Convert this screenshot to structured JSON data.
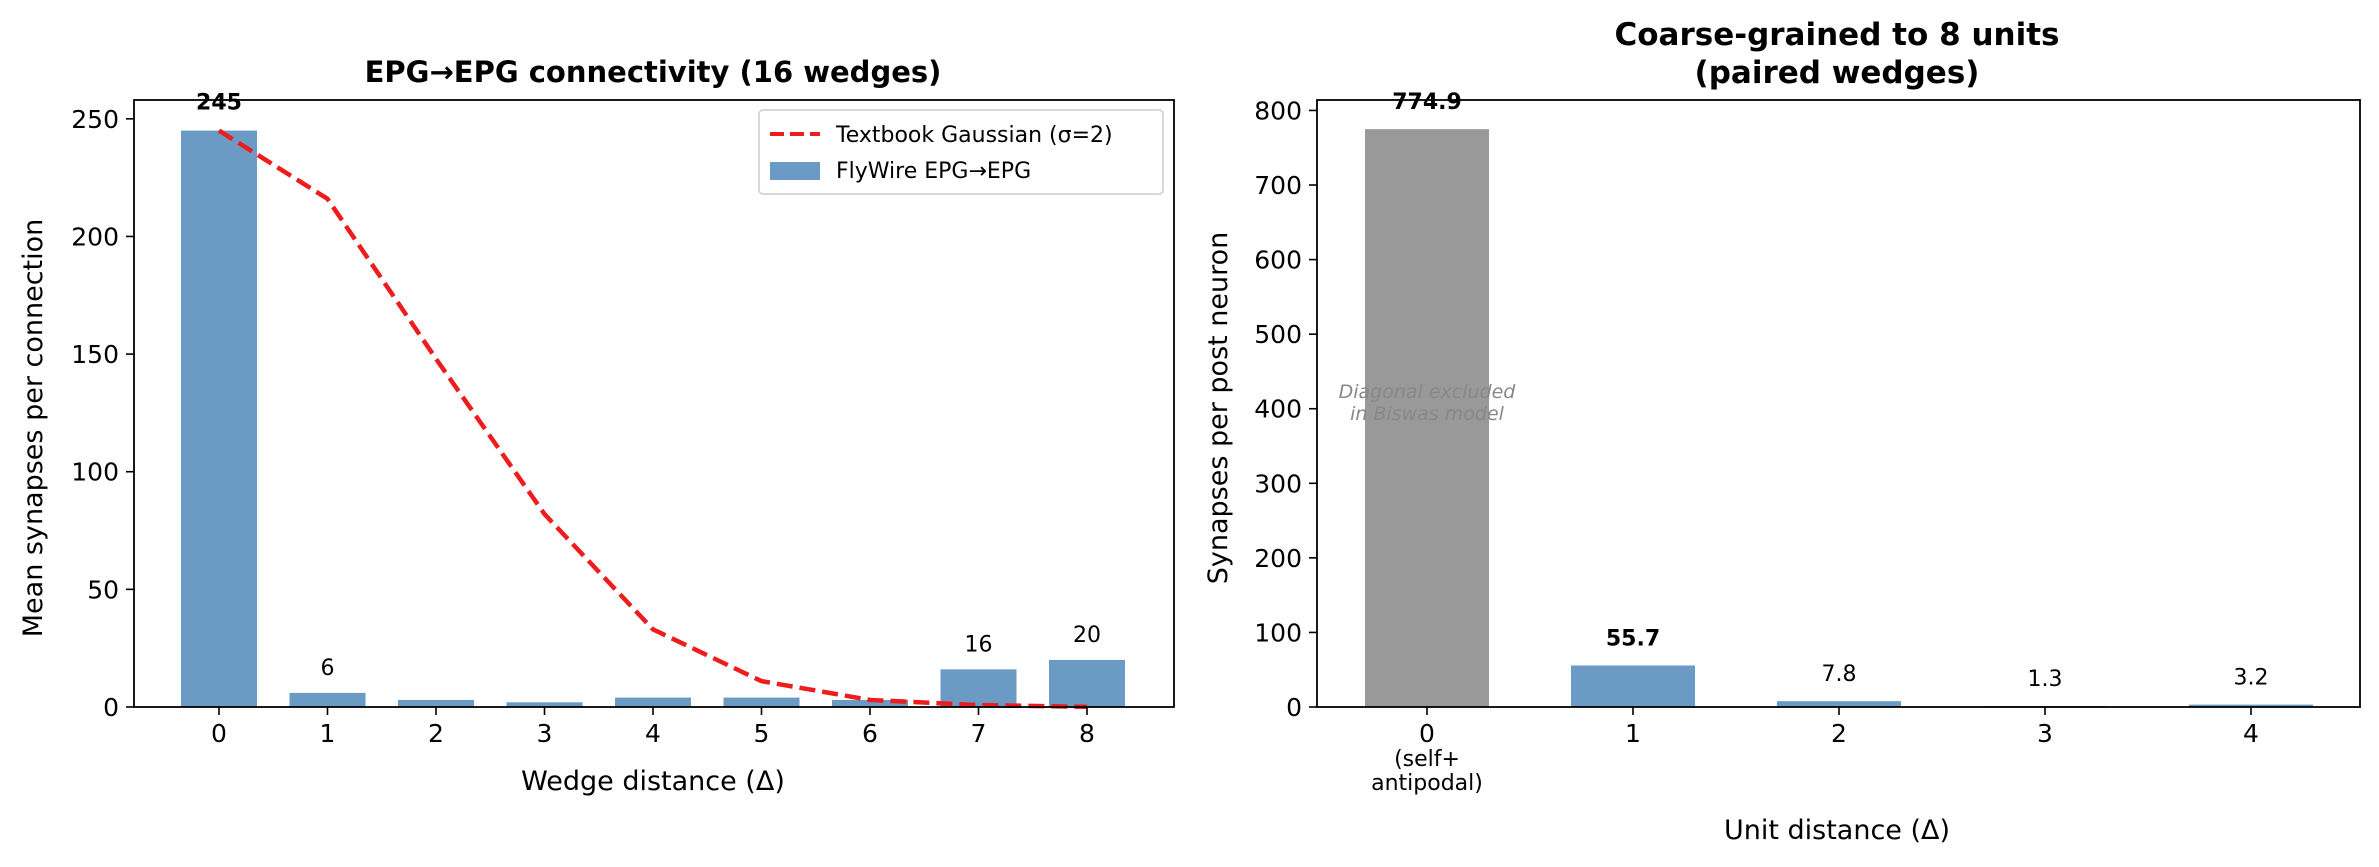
{
  "chart_data": [
    {
      "type": "bar",
      "title": "EPG→EPG connectivity (16 wedges)",
      "xlabel": "Wedge distance (Δ)",
      "ylabel": "Mean synapses per connection",
      "categories": [
        "0",
        "1",
        "2",
        "3",
        "4",
        "5",
        "6",
        "7",
        "8"
      ],
      "ylim": [
        0,
        258
      ],
      "yticks": [
        0,
        50,
        100,
        150,
        200,
        250
      ],
      "series": [
        {
          "name": "FlyWire EPG→EPG",
          "type": "bar",
          "color": "#6b9bc4",
          "values": [
            245,
            6,
            3,
            2,
            4,
            4,
            3,
            16,
            20
          ],
          "data_labels": [
            "245",
            "6",
            "",
            "",
            "",
            "",
            "",
            "16",
            "20"
          ]
        },
        {
          "name": "Textbook Gaussian (σ=2)",
          "type": "line",
          "color": "#ee1c1c",
          "style": "dashed",
          "values": [
            245,
            216,
            148,
            82,
            33,
            11,
            3,
            0.8,
            0.1
          ]
        }
      ],
      "legend_position": "top-right",
      "grid": false
    },
    {
      "type": "bar",
      "title": "Coarse-grained to 8 units\n(paired wedges)",
      "xlabel": "Unit distance (Δ)",
      "ylabel": "Synapses per post neuron",
      "categories": [
        "0\n(self+\nantipodal)",
        "1",
        "2",
        "3",
        "4"
      ],
      "ylim": [
        0,
        814
      ],
      "yticks": [
        0,
        100,
        200,
        300,
        400,
        500,
        600,
        700,
        800
      ],
      "values": [
        774.9,
        55.7,
        7.8,
        1.3,
        3.2
      ],
      "data_labels": [
        "774.9",
        "55.7",
        "7.8",
        "1.3",
        "3.2"
      ],
      "bar_colors": [
        "#999999",
        "#6b9bc4",
        "#6b9bc4",
        "#6b9bc4",
        "#6b9bc4"
      ],
      "annotation": "Diagonal excluded\nin Biswas model",
      "grid": false
    }
  ]
}
